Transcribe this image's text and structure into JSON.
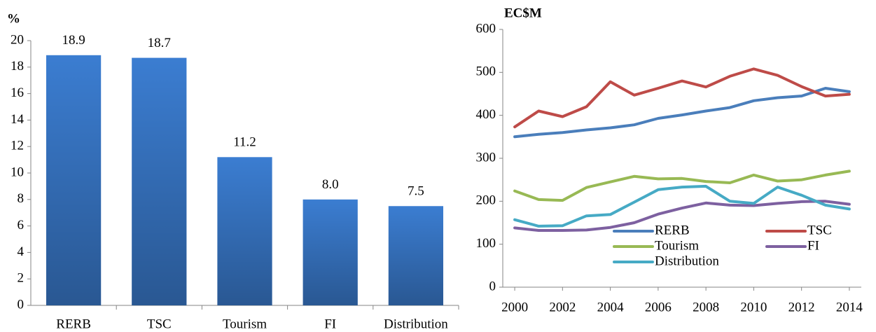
{
  "chart_data": [
    {
      "type": "bar",
      "ylabel": "%",
      "categories": [
        "RERB",
        "TSC",
        "Tourism",
        "FI",
        "Distribution"
      ],
      "values": [
        18.9,
        18.7,
        11.2,
        8.0,
        7.5
      ],
      "value_labels": [
        "18.9",
        "18.7",
        "11.2",
        "8.0",
        "7.5"
      ],
      "color": "#3b7dd1",
      "ylim": [
        0,
        20
      ],
      "yticks": [
        0,
        2,
        4,
        6,
        8,
        10,
        12,
        14,
        16,
        18,
        20
      ]
    },
    {
      "type": "line",
      "ylabel": "EC$M",
      "x": [
        2000,
        2001,
        2002,
        2003,
        2004,
        2005,
        2006,
        2007,
        2008,
        2009,
        2010,
        2011,
        2012,
        2013,
        2014
      ],
      "series": [
        {
          "name": "RERB",
          "color": "#4a7ebb",
          "values": [
            350,
            356,
            360,
            366,
            371,
            378,
            393,
            401,
            410,
            418,
            434,
            441,
            445,
            463,
            455
          ]
        },
        {
          "name": "TSC",
          "color": "#be4b48",
          "values": [
            373,
            410,
            397,
            420,
            478,
            447,
            463,
            480,
            466,
            491,
            508,
            493,
            467,
            445,
            449
          ]
        },
        {
          "name": "Tourism",
          "color": "#98b954",
          "values": [
            224,
            204,
            202,
            232,
            245,
            258,
            252,
            253,
            246,
            243,
            261,
            247,
            250,
            261,
            270
          ]
        },
        {
          "name": "FI",
          "color": "#7d60a0",
          "values": [
            138,
            132,
            132,
            133,
            139,
            150,
            170,
            184,
            196,
            191,
            190,
            195,
            199,
            200,
            193
          ]
        },
        {
          "name": "Distribution",
          "color": "#46aac5",
          "values": [
            157,
            142,
            143,
            166,
            169,
            198,
            227,
            233,
            235,
            200,
            195,
            233,
            214,
            191,
            182
          ]
        }
      ],
      "xlim": [
        1999.5,
        2014.5
      ],
      "xticks": [
        2000,
        2002,
        2004,
        2006,
        2008,
        2010,
        2012,
        2014
      ],
      "ylim": [
        0,
        600
      ],
      "yticks": [
        0,
        100,
        200,
        300,
        400,
        500,
        600
      ],
      "legend": "lower center"
    }
  ]
}
